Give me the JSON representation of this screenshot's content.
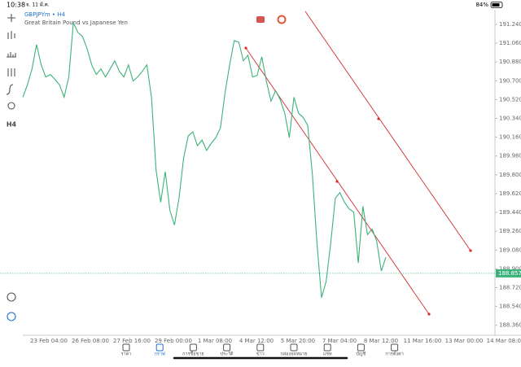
{
  "status": {
    "time": "10:38",
    "date": "จ. 11 มี.ค.",
    "battery": "84%"
  },
  "toolbar": {
    "timeframe": "H4"
  },
  "chart_data": {
    "type": "line",
    "symbol": "GBPJPYm • H4",
    "description": "Great Britain Pound vs Japanese Yen",
    "series": [
      {
        "name": "GBPJPYm",
        "color": "#3cb37a",
        "values": [
          190.543,
          190.66,
          190.814,
          191.046,
          190.853,
          190.737,
          190.76,
          190.714,
          190.66,
          190.543,
          190.737,
          191.255,
          191.163,
          191.124,
          191.008,
          190.853,
          190.76,
          190.814,
          190.737,
          190.814,
          190.892,
          190.791,
          190.737,
          190.853,
          190.698,
          190.737,
          190.791,
          190.853,
          190.543,
          189.847,
          189.537,
          189.831,
          189.46,
          189.32,
          189.576,
          189.963,
          190.172,
          190.211,
          190.079,
          190.133,
          190.033,
          190.102,
          190.156,
          190.249,
          190.582,
          190.853,
          191.085,
          191.07,
          190.892,
          190.946,
          190.737,
          190.752,
          190.93,
          190.698,
          190.505,
          190.605,
          190.52,
          190.389,
          190.156,
          190.543,
          190.389,
          190.35,
          190.273,
          189.808,
          189.15,
          188.624,
          188.779,
          189.15,
          189.576,
          189.63,
          189.537,
          189.475,
          189.444,
          188.957,
          189.499,
          189.228,
          189.282,
          189.166,
          188.879,
          189.011
        ]
      }
    ],
    "current_price": 188.857,
    "ylim": [
      188.28,
      191.38
    ],
    "yticks": [
      {
        "value": 191.24,
        "label": "191.240"
      },
      {
        "value": 191.06,
        "label": "191.060"
      },
      {
        "value": 190.88,
        "label": "190.880"
      },
      {
        "value": 190.7,
        "label": "190.700"
      },
      {
        "value": 190.52,
        "label": "190.520"
      },
      {
        "value": 190.34,
        "label": "190.340"
      },
      {
        "value": 190.16,
        "label": "190.160"
      },
      {
        "value": 189.98,
        "label": "189.980"
      },
      {
        "value": 189.8,
        "label": "189.800"
      },
      {
        "value": 189.62,
        "label": "189.620"
      },
      {
        "value": 189.44,
        "label": "189.440"
      },
      {
        "value": 189.26,
        "label": "189.260"
      },
      {
        "value": 189.08,
        "label": "189.080"
      },
      {
        "value": 188.9,
        "label": "188.900"
      },
      {
        "value": 188.72,
        "label": "188.720"
      },
      {
        "value": 188.54,
        "label": "188.540"
      },
      {
        "value": 188.36,
        "label": "188.360"
      }
    ],
    "xtick_labels": [
      "23 Feb 04:00",
      "26 Feb 08:00",
      "27 Feb 16:00",
      "29 Feb 00:00",
      "1 Mar 08:00",
      "4 Mar 12:00",
      "5 Mar 20:00",
      "7 Mar 04:00",
      "8 Mar 12:00",
      "11 Mar 16:00",
      "13 Mar 00:00",
      "14 Mar 08:00"
    ]
  },
  "nav": [
    "ราคา",
    "กราฟ",
    "การซื้อขาย",
    "ประวัติ",
    "ข่าว",
    "กล่องจดหมาย",
    "แชท",
    "บัญชี",
    "การตั้งค่า"
  ]
}
